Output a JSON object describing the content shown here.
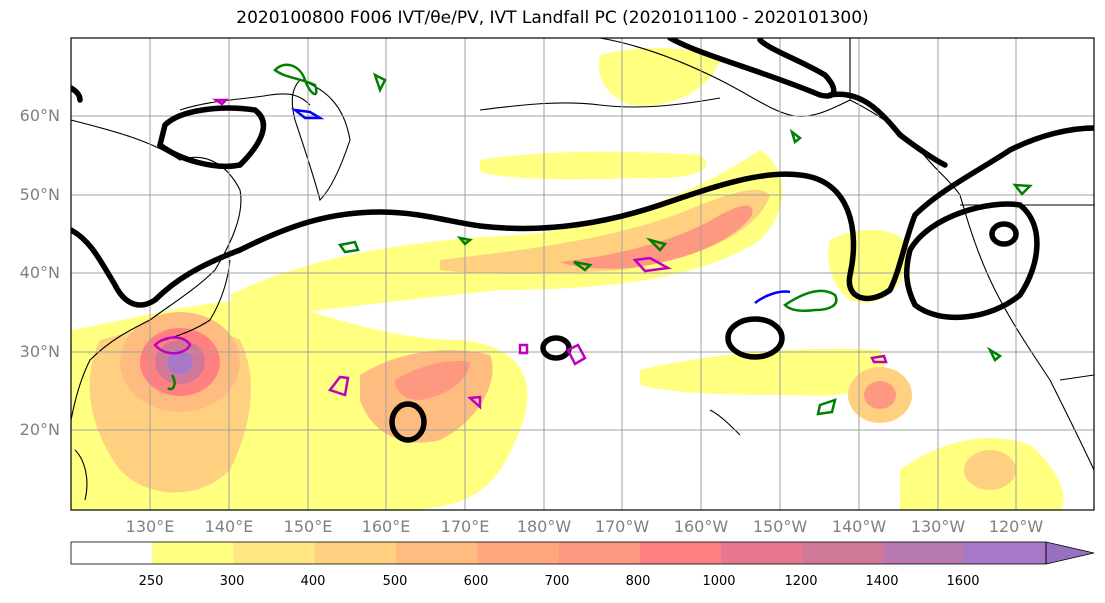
{
  "title": "2020100800 F006 IVT/θe/PV, IVT Landfall PC (2020101100 - 2020101300)",
  "map": {
    "lat_labels": [
      "60°N",
      "50°N",
      "40°N",
      "30°N",
      "20°N"
    ],
    "lon_labels": [
      "130°E",
      "140°E",
      "150°E",
      "160°E",
      "170°E",
      "180°W",
      "170°W",
      "160°W",
      "150°W",
      "140°W",
      "130°W",
      "120°W"
    ]
  },
  "colorbar": {
    "labels": [
      "250",
      "300",
      "400",
      "500",
      "600",
      "700",
      "800",
      "1000",
      "1200",
      "1400",
      "1600"
    ],
    "colors": [
      "#ffffff",
      "#ffff80",
      "#ffe680",
      "#ffd080",
      "#ffbc80",
      "#ffa880",
      "#ff9880",
      "#ff8080",
      "#e87890",
      "#d07898",
      "#b878b0",
      "#a878c8",
      "#9870c0"
    ]
  },
  "colors": {
    "theta_e_contour": "#000000",
    "pv_green": "#008000",
    "pv_blue": "#0000ff",
    "pv_magenta": "#c000c0",
    "coast": "#000000"
  }
}
